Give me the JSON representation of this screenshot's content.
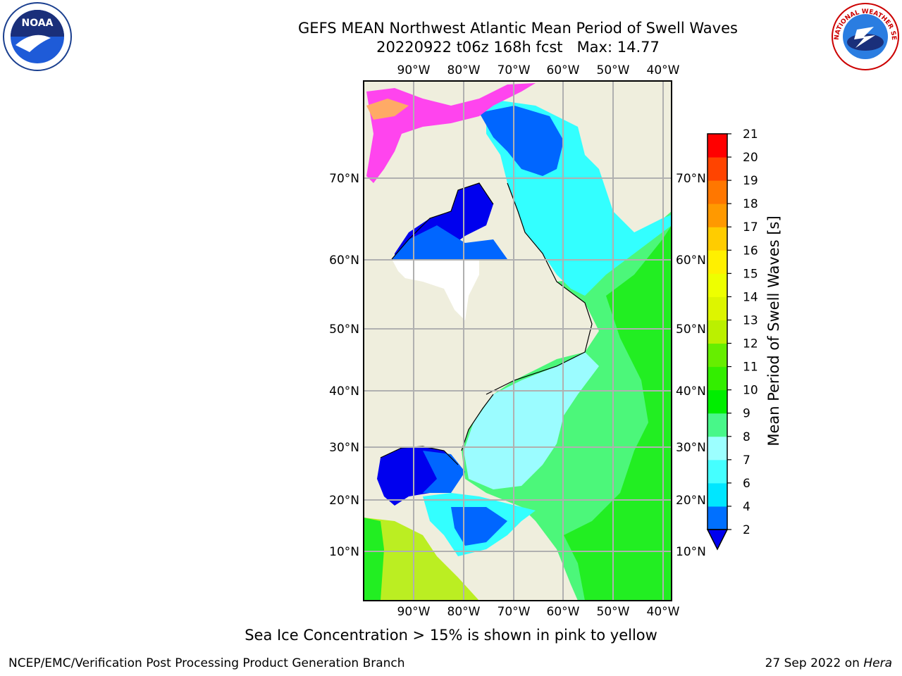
{
  "title": {
    "line1": "GEFS MEAN Northwest Atlantic Mean Period of Swell Waves",
    "line2": "20220922 t06z 168h fcst   Max: 14.77"
  },
  "map": {
    "lon_labels": [
      "90°W",
      "80°W",
      "70°W",
      "60°W",
      "50°W",
      "40°W"
    ],
    "lat_labels": [
      "70°N",
      "60°N",
      "50°N",
      "40°N",
      "30°N",
      "20°N",
      "10°N"
    ],
    "colors": {
      "land": "#efeedd",
      "grid": "#b0b0b0",
      "ocean_light": "#9bfcff",
      "ocean_cyan": "#33ffff",
      "ocean_green": "#4cf77a",
      "ocean_bright_green": "#22ee22",
      "ocean_blue": "#0066ff",
      "ocean_deep_blue": "#0000ee",
      "ice_pink": "#ff44ee",
      "ice_orange": "#ffaa66",
      "south_yellow_green": "#bbee22"
    }
  },
  "colorbar": {
    "label": "Mean Period of Swell Waves [s]",
    "ticks": [
      "2",
      "4",
      "6",
      "7",
      "8",
      "9",
      "10",
      "11",
      "12",
      "13",
      "14",
      "15",
      "16",
      "17",
      "18",
      "19",
      "20",
      "21"
    ],
    "bin_colors": [
      "#0070ff",
      "#00e6ff",
      "#45ffff",
      "#9cffff",
      "#48f789",
      "#00ee00",
      "#33ee00",
      "#66ee00",
      "#bbf000",
      "#ddf500",
      "#eeff00",
      "#fff000",
      "#ffcc00",
      "#ff9900",
      "#ff7700",
      "#ff4400",
      "#ff0000"
    ],
    "under_color": "#0000ee"
  },
  "footer": {
    "note": "Sea Ice Concentration > 15% is shown in pink to yellow",
    "credit_left": "NCEP/EMC/Verification Post Processing Product Generation Branch",
    "date": "27 Sep 2022 on",
    "host": "Hera"
  },
  "logos": {
    "noaa_text": "NOAA",
    "nws_text": "NATIONAL WEATHER SERVICE"
  }
}
